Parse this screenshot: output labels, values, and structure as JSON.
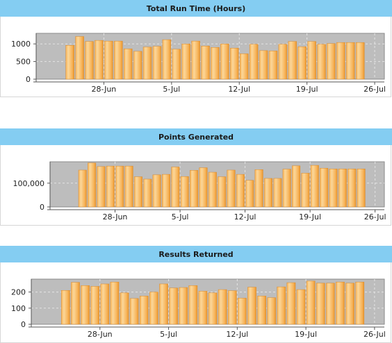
{
  "colors": {
    "header": "#84cdf2",
    "plot_bg": "#bdbdbd",
    "bar_light": "#fbd79a",
    "bar_mid": "#f7b45a",
    "bar_dark": "#e8952e",
    "grid": "#e4e4e4"
  },
  "chart_data": [
    {
      "type": "bar",
      "title": "Total Run Time (Hours)",
      "xlabel": "",
      "ylabel": "",
      "x_axis_type": "date",
      "xlim": [
        "2014-06-21",
        "2014-07-27"
      ],
      "x_ticks": [
        "28-Jun",
        "5-Jul",
        "12-Jul",
        "19-Jul",
        "26-Jul"
      ],
      "ylim": [
        0,
        1300
      ],
      "y_ticks": [
        0,
        500,
        1000
      ],
      "y_tick_labels": [
        "0",
        "500",
        "1000"
      ],
      "grid": true,
      "categories": [
        "2014-06-24",
        "2014-06-25",
        "2014-06-26",
        "2014-06-27",
        "2014-06-28",
        "2014-06-29",
        "2014-06-30",
        "2014-07-01",
        "2014-07-02",
        "2014-07-03",
        "2014-07-04",
        "2014-07-05",
        "2014-07-06",
        "2014-07-07",
        "2014-07-08",
        "2014-07-09",
        "2014-07-10",
        "2014-07-11",
        "2014-07-12",
        "2014-07-13",
        "2014-07-14",
        "2014-07-15",
        "2014-07-16",
        "2014-07-17",
        "2014-07-18",
        "2014-07-19",
        "2014-07-20",
        "2014-07-21",
        "2014-07-22",
        "2014-07-23",
        "2014-07-24"
      ],
      "values": [
        960,
        1210,
        1070,
        1100,
        1080,
        1080,
        860,
        790,
        910,
        930,
        1120,
        850,
        1000,
        1080,
        940,
        900,
        1000,
        880,
        720,
        990,
        810,
        800,
        990,
        1070,
        920,
        1070,
        990,
        1010,
        1040,
        1040,
        1040
      ]
    },
    {
      "type": "bar",
      "title": "Points Generated",
      "xlabel": "",
      "ylabel": "",
      "x_axis_type": "date",
      "xlim": [
        "2014-06-21",
        "2014-07-27"
      ],
      "x_ticks": [
        "28-Jun",
        "5-Jul",
        "12-Jul",
        "19-Jul",
        "26-Jul"
      ],
      "ylim": [
        0,
        190000
      ],
      "y_ticks": [
        0,
        100000
      ],
      "y_tick_labels": [
        "0",
        "100,000"
      ],
      "grid": true,
      "categories": [
        "2014-06-24",
        "2014-06-25",
        "2014-06-26",
        "2014-06-27",
        "2014-06-28",
        "2014-06-29",
        "2014-06-30",
        "2014-07-01",
        "2014-07-02",
        "2014-07-03",
        "2014-07-04",
        "2014-07-05",
        "2014-07-06",
        "2014-07-07",
        "2014-07-08",
        "2014-07-09",
        "2014-07-10",
        "2014-07-11",
        "2014-07-12",
        "2014-07-13",
        "2014-07-14",
        "2014-07-15",
        "2014-07-16",
        "2014-07-17",
        "2014-07-18",
        "2014-07-19",
        "2014-07-20",
        "2014-07-21",
        "2014-07-22",
        "2014-07-23",
        "2014-07-24"
      ],
      "values": [
        155000,
        185000,
        170000,
        172000,
        172000,
        172000,
        127000,
        117000,
        135000,
        137000,
        168000,
        128000,
        154000,
        165000,
        146000,
        127000,
        155000,
        137000,
        112000,
        157000,
        120000,
        120000,
        159000,
        173000,
        142000,
        175000,
        163000,
        160000,
        160000,
        160000,
        160000
      ]
    },
    {
      "type": "bar",
      "title": "Results Returned",
      "xlabel": "",
      "ylabel": "",
      "x_axis_type": "date",
      "xlim": [
        "2014-06-21",
        "2014-07-27"
      ],
      "x_ticks": [
        "28-Jun",
        "5-Jul",
        "12-Jul",
        "19-Jul",
        "26-Jul"
      ],
      "ylim": [
        0,
        280
      ],
      "y_ticks": [
        0,
        100,
        200
      ],
      "y_tick_labels": [
        "0",
        "100",
        "200"
      ],
      "grid": true,
      "categories": [
        "2014-06-24",
        "2014-06-25",
        "2014-06-26",
        "2014-06-27",
        "2014-06-28",
        "2014-06-29",
        "2014-06-30",
        "2014-07-01",
        "2014-07-02",
        "2014-07-03",
        "2014-07-04",
        "2014-07-05",
        "2014-07-06",
        "2014-07-07",
        "2014-07-08",
        "2014-07-09",
        "2014-07-10",
        "2014-07-11",
        "2014-07-12",
        "2014-07-13",
        "2014-07-14",
        "2014-07-15",
        "2014-07-16",
        "2014-07-17",
        "2014-07-18",
        "2014-07-19",
        "2014-07-20",
        "2014-07-21",
        "2014-07-22",
        "2014-07-23",
        "2014-07-24"
      ],
      "values": [
        210,
        260,
        240,
        235,
        250,
        262,
        195,
        160,
        175,
        200,
        250,
        225,
        228,
        240,
        205,
        195,
        215,
        208,
        162,
        230,
        175,
        165,
        232,
        258,
        215,
        268,
        255,
        255,
        262,
        255,
        262
      ]
    }
  ]
}
